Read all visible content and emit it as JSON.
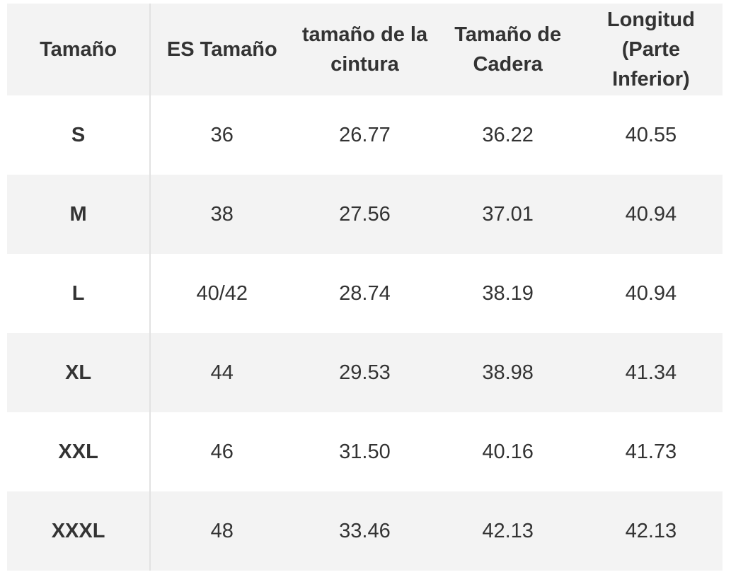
{
  "table": {
    "header": [
      "Tamaño",
      "ES Tamaño",
      "tamaño de la cintura",
      "Tamaño de Cadera",
      "Longitud (Parte Inferior)"
    ],
    "rows": [
      [
        "S",
        "36",
        "26.77",
        "36.22",
        "40.55"
      ],
      [
        "M",
        "38",
        "27.56",
        "37.01",
        "40.94"
      ],
      [
        "L",
        "40/42",
        "28.74",
        "38.19",
        "40.94"
      ],
      [
        "XL",
        "44",
        "29.53",
        "38.98",
        "41.34"
      ],
      [
        "XXL",
        "46",
        "31.50",
        "40.16",
        "41.73"
      ],
      [
        "XXXL",
        "48",
        "33.46",
        "42.13",
        "42.13"
      ]
    ]
  }
}
